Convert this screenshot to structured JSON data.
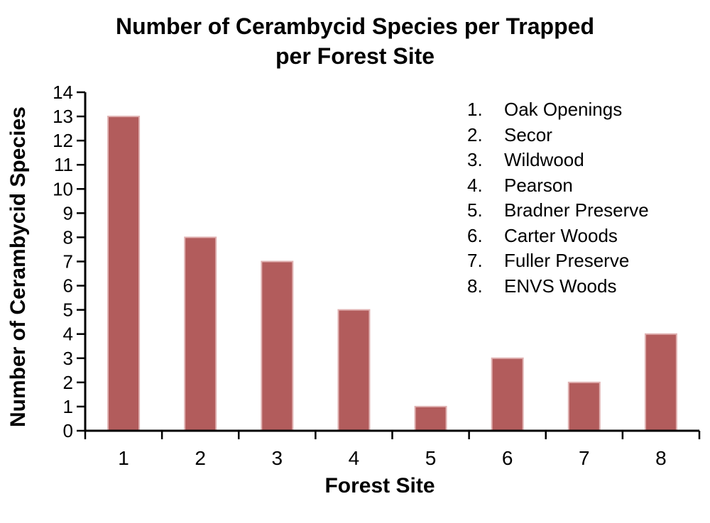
{
  "page": {
    "background": "#FFFFFF"
  },
  "title": {
    "line1": "Number of Cerambycid Species per Trapped",
    "line2": "per Forest Site"
  },
  "chart_data": {
    "type": "bar",
    "title": "Number of Cerambycid Species per Trapped per Forest Site",
    "categories": [
      "1",
      "2",
      "3",
      "4",
      "5",
      "6",
      "7",
      "8"
    ],
    "values": [
      13,
      8,
      7,
      5,
      1,
      3,
      2,
      4
    ],
    "xlabel": "Forest Site",
    "ylabel": "Number of Cerambycid Species",
    "ylim": [
      0,
      14
    ],
    "ytick_step": 1,
    "grid": false,
    "legend_position": "upper-right",
    "colors": {
      "bar_fill": "#B25C5C",
      "bar_border": "#E0B2B2",
      "axis": "#000000",
      "text": "#000000"
    }
  },
  "legend": {
    "items": [
      {
        "num": "1.",
        "label": "Oak Openings"
      },
      {
        "num": "2.",
        "label": "Secor"
      },
      {
        "num": "3.",
        "label": "Wildwood"
      },
      {
        "num": "4.",
        "label": "Pearson"
      },
      {
        "num": "5.",
        "label": "Bradner Preserve"
      },
      {
        "num": "6.",
        "label": "Carter Woods"
      },
      {
        "num": "7.",
        "label": "Fuller Preserve"
      },
      {
        "num": "8.",
        "label": "ENVS Woods"
      }
    ]
  }
}
